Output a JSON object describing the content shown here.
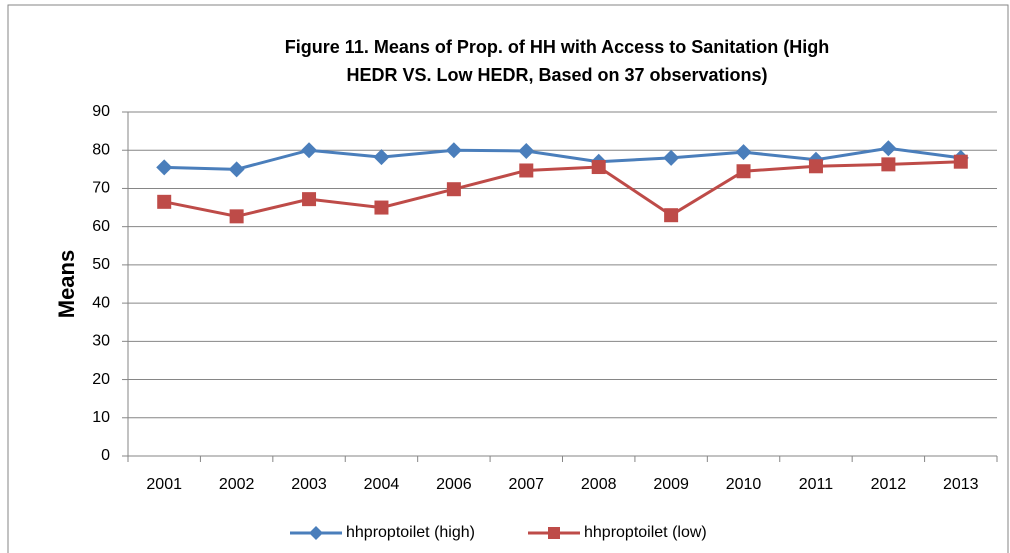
{
  "chart_data": {
    "type": "line",
    "title": [
      "Figure 11. Means of Prop. of HH with Access to Sanitation (High",
      "HEDR VS. Low HEDR, Based on 37 observations)"
    ],
    "y_label": "Means",
    "categories": [
      "2001",
      "2002",
      "2003",
      "2004",
      "2006",
      "2007",
      "2008",
      "2009",
      "2010",
      "2011",
      "2012",
      "2013"
    ],
    "series": [
      {
        "name": "hhproptoilet (high)",
        "color": "#4a7ebb",
        "marker": "diamond",
        "values": [
          75.5,
          75,
          80,
          78.2,
          80,
          79.8,
          77,
          78,
          79.5,
          77.5,
          80.5,
          78
        ]
      },
      {
        "name": "hhproptoilet (low)",
        "color": "#be4b48",
        "marker": "square",
        "values": [
          66.5,
          62.7,
          67.2,
          65,
          69.8,
          74.7,
          75.6,
          63,
          74.5,
          75.8,
          76.3,
          77
        ]
      }
    ],
    "ylim": [
      0,
      90
    ],
    "yticks": [
      0,
      10,
      20,
      30,
      40,
      50,
      60,
      70,
      80,
      90
    ],
    "grid": true,
    "legend": "bottom"
  }
}
